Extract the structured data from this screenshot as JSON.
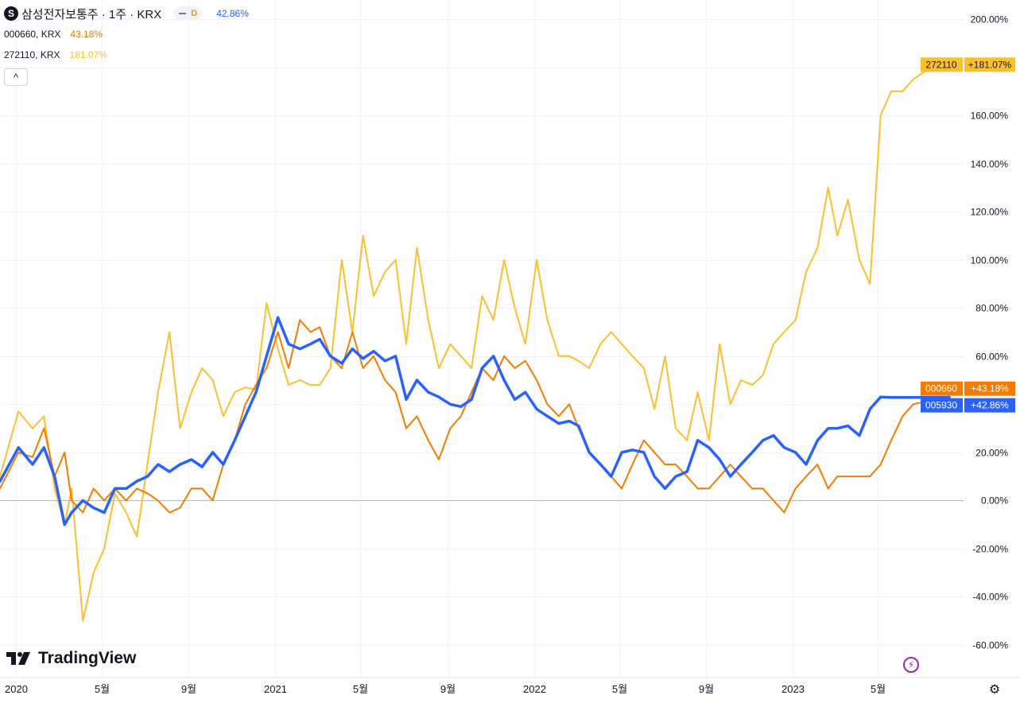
{
  "legend": {
    "main_icon_letter": "S",
    "main_title": "삼성전자보통주 · 1주 · KRX",
    "interval_label": "D",
    "main_pct": "42.86%",
    "series2_symbol": "000660, KRX",
    "series2_pct": "43.18%",
    "series3_symbol": "272110, KRX",
    "series3_pct": "181.07%",
    "collapse_icon": "^"
  },
  "logo_text": "TradingView",
  "flash_icon": "⚡",
  "settings_icon": "⚙",
  "chart_data": {
    "type": "line",
    "y_unit": "%",
    "ylim": [
      -65,
      205
    ],
    "y_ticks": [
      200,
      180,
      160,
      140,
      120,
      100,
      80,
      60,
      40,
      20,
      0,
      -20,
      -40,
      -60
    ],
    "y_tick_labels": [
      "200.00%",
      "180.00%",
      "160.00%",
      "140.00%",
      "120.00%",
      "100.00%",
      "80.00%",
      "60.00%",
      "40.00%",
      "20.00%",
      "0.00%",
      "-20.00%",
      "-40.00%",
      "-60.00%"
    ],
    "x_ticks": [
      {
        "label": "2020",
        "date": "2020-01-01"
      },
      {
        "label": "5월",
        "date": "2020-05-01"
      },
      {
        "label": "9월",
        "date": "2020-09-01"
      },
      {
        "label": "2021",
        "date": "2021-01-01"
      },
      {
        "label": "5월",
        "date": "2021-05-01"
      },
      {
        "label": "9월",
        "date": "2021-09-01"
      },
      {
        "label": "2022",
        "date": "2022-01-01"
      },
      {
        "label": "5월",
        "date": "2022-05-01"
      },
      {
        "label": "9월",
        "date": "2022-09-01"
      },
      {
        "label": "2023",
        "date": "2023-01-01"
      },
      {
        "label": "5월",
        "date": "2023-05-01"
      }
    ],
    "x_start": "2019-12-10",
    "x_end": "2023-08-30",
    "colors": {
      "005930": "#2962ff",
      "000660": "#f57c00",
      "272110": "#fbc02d"
    },
    "series": [
      {
        "name": "272110",
        "color": "#fbc02d",
        "last_label": "+181.07%",
        "x": [
          "2019-12-10",
          "2020-01-05",
          "2020-01-25",
          "2020-02-10",
          "2020-02-25",
          "2020-03-10",
          "2020-03-20",
          "2020-04-05",
          "2020-04-20",
          "2020-05-05",
          "2020-05-20",
          "2020-06-05",
          "2020-06-20",
          "2020-07-05",
          "2020-07-20",
          "2020-08-05",
          "2020-08-20",
          "2020-09-05",
          "2020-09-20",
          "2020-10-05",
          "2020-10-20",
          "2020-11-05",
          "2020-11-20",
          "2020-12-05",
          "2020-12-20",
          "2021-01-05",
          "2021-01-20",
          "2021-02-05",
          "2021-02-20",
          "2021-03-05",
          "2021-03-20",
          "2021-04-05",
          "2021-04-20",
          "2021-05-05",
          "2021-05-20",
          "2021-06-05",
          "2021-06-20",
          "2021-07-05",
          "2021-07-20",
          "2021-08-05",
          "2021-08-20",
          "2021-09-05",
          "2021-09-20",
          "2021-10-05",
          "2021-10-20",
          "2021-11-05",
          "2021-11-20",
          "2021-12-05",
          "2021-12-20",
          "2022-01-05",
          "2022-01-20",
          "2022-02-05",
          "2022-02-20",
          "2022-03-05",
          "2022-03-20",
          "2022-04-05",
          "2022-04-20",
          "2022-05-05",
          "2022-05-20",
          "2022-06-05",
          "2022-06-20",
          "2022-07-05",
          "2022-07-20",
          "2022-08-05",
          "2022-08-20",
          "2022-09-05",
          "2022-09-20",
          "2022-10-05",
          "2022-10-20",
          "2022-11-05",
          "2022-11-20",
          "2022-12-05",
          "2022-12-20",
          "2023-01-05",
          "2023-01-20",
          "2023-02-05",
          "2023-02-20",
          "2023-03-05",
          "2023-03-20",
          "2023-04-05",
          "2023-04-20",
          "2023-05-05",
          "2023-05-20",
          "2023-06-05",
          "2023-06-20",
          "2023-07-05",
          "2023-07-20",
          "2023-08-01",
          "2023-08-10"
        ],
        "values": [
          10,
          37,
          30,
          35,
          5,
          -10,
          5,
          -50,
          -30,
          -20,
          3,
          -5,
          -15,
          15,
          45,
          70,
          30,
          45,
          55,
          50,
          35,
          45,
          47,
          46,
          82,
          63,
          48,
          50,
          48,
          48,
          55,
          100,
          70,
          110,
          85,
          95,
          100,
          65,
          105,
          75,
          55,
          65,
          60,
          55,
          85,
          75,
          100,
          80,
          65,
          100,
          75,
          60,
          60,
          58,
          55,
          65,
          70,
          65,
          60,
          55,
          38,
          60,
          30,
          25,
          45,
          25,
          65,
          40,
          50,
          48,
          52,
          65,
          70,
          75,
          95,
          105,
          130,
          110,
          125,
          100,
          90,
          160,
          170,
          170,
          175,
          178,
          180,
          181,
          181.07
        ]
      },
      {
        "name": "000660",
        "color": "#f57c00",
        "last_label": "+43.18%",
        "x": [
          "2019-12-10",
          "2020-01-05",
          "2020-01-25",
          "2020-02-10",
          "2020-02-25",
          "2020-03-10",
          "2020-03-20",
          "2020-04-05",
          "2020-04-20",
          "2020-05-05",
          "2020-05-20",
          "2020-06-05",
          "2020-06-20",
          "2020-07-05",
          "2020-07-20",
          "2020-08-05",
          "2020-08-20",
          "2020-09-05",
          "2020-09-20",
          "2020-10-05",
          "2020-10-20",
          "2020-11-05",
          "2020-11-20",
          "2020-12-05",
          "2020-12-20",
          "2021-01-05",
          "2021-01-20",
          "2021-02-05",
          "2021-02-20",
          "2021-03-05",
          "2021-03-20",
          "2021-04-05",
          "2021-04-20",
          "2021-05-05",
          "2021-05-20",
          "2021-06-05",
          "2021-06-20",
          "2021-07-05",
          "2021-07-20",
          "2021-08-05",
          "2021-08-20",
          "2021-09-05",
          "2021-09-20",
          "2021-10-05",
          "2021-10-20",
          "2021-11-05",
          "2021-11-20",
          "2021-12-05",
          "2021-12-20",
          "2022-01-05",
          "2022-01-20",
          "2022-02-05",
          "2022-02-20",
          "2022-03-05",
          "2022-03-20",
          "2022-04-05",
          "2022-04-20",
          "2022-05-05",
          "2022-05-20",
          "2022-06-05",
          "2022-06-20",
          "2022-07-05",
          "2022-07-20",
          "2022-08-05",
          "2022-08-20",
          "2022-09-05",
          "2022-09-20",
          "2022-10-05",
          "2022-10-20",
          "2022-11-05",
          "2022-11-20",
          "2022-12-05",
          "2022-12-20",
          "2023-01-05",
          "2023-01-20",
          "2023-02-05",
          "2023-02-20",
          "2023-03-05",
          "2023-03-20",
          "2023-04-05",
          "2023-04-20",
          "2023-05-05",
          "2023-05-20",
          "2023-06-05",
          "2023-06-20",
          "2023-07-05",
          "2023-07-20",
          "2023-08-01",
          "2023-08-10"
        ],
        "values": [
          5,
          20,
          18,
          30,
          10,
          20,
          0,
          -5,
          5,
          0,
          5,
          0,
          5,
          3,
          0,
          -5,
          -3,
          5,
          5,
          0,
          15,
          25,
          40,
          48,
          55,
          70,
          55,
          75,
          70,
          72,
          60,
          55,
          70,
          55,
          60,
          50,
          45,
          30,
          35,
          25,
          17,
          30,
          35,
          45,
          55,
          50,
          60,
          55,
          58,
          50,
          40,
          35,
          40,
          30,
          20,
          15,
          10,
          5,
          15,
          25,
          20,
          15,
          15,
          10,
          5,
          5,
          10,
          15,
          10,
          5,
          5,
          0,
          -5,
          5,
          10,
          15,
          5,
          10,
          10,
          10,
          10,
          15,
          25,
          35,
          40,
          41,
          42,
          43,
          43.18
        ]
      },
      {
        "name": "005930",
        "color": "#2962ff",
        "last_label": "+42.86%",
        "x": [
          "2019-12-10",
          "2020-01-05",
          "2020-01-25",
          "2020-02-10",
          "2020-02-25",
          "2020-03-10",
          "2020-03-20",
          "2020-04-05",
          "2020-04-20",
          "2020-05-05",
          "2020-05-20",
          "2020-06-05",
          "2020-06-20",
          "2020-07-05",
          "2020-07-20",
          "2020-08-05",
          "2020-08-20",
          "2020-09-05",
          "2020-09-20",
          "2020-10-05",
          "2020-10-20",
          "2020-11-05",
          "2020-11-20",
          "2020-12-05",
          "2020-12-20",
          "2021-01-05",
          "2021-01-20",
          "2021-02-05",
          "2021-02-20",
          "2021-03-05",
          "2021-03-20",
          "2021-04-05",
          "2021-04-20",
          "2021-05-05",
          "2021-05-20",
          "2021-06-05",
          "2021-06-20",
          "2021-07-05",
          "2021-07-20",
          "2021-08-05",
          "2021-08-20",
          "2021-09-05",
          "2021-09-20",
          "2021-10-05",
          "2021-10-20",
          "2021-11-05",
          "2021-11-20",
          "2021-12-05",
          "2021-12-20",
          "2022-01-05",
          "2022-01-20",
          "2022-02-05",
          "2022-02-20",
          "2022-03-05",
          "2022-03-20",
          "2022-04-05",
          "2022-04-20",
          "2022-05-05",
          "2022-05-20",
          "2022-06-05",
          "2022-06-20",
          "2022-07-05",
          "2022-07-20",
          "2022-08-05",
          "2022-08-20",
          "2022-09-05",
          "2022-09-20",
          "2022-10-05",
          "2022-10-20",
          "2022-11-05",
          "2022-11-20",
          "2022-12-05",
          "2022-12-20",
          "2023-01-05",
          "2023-01-20",
          "2023-02-05",
          "2023-02-20",
          "2023-03-05",
          "2023-03-20",
          "2023-04-05",
          "2023-04-20",
          "2023-05-05",
          "2023-05-20",
          "2023-06-05",
          "2023-06-20",
          "2023-07-05",
          "2023-07-20",
          "2023-08-01",
          "2023-08-10"
        ],
        "values": [
          8,
          22,
          15,
          22,
          10,
          -10,
          -5,
          0,
          -3,
          -5,
          5,
          5,
          8,
          10,
          15,
          12,
          15,
          17,
          14,
          20,
          15,
          25,
          35,
          45,
          60,
          76,
          65,
          63,
          65,
          67,
          60,
          57,
          63,
          59,
          62,
          58,
          60,
          42,
          50,
          45,
          43,
          40,
          39,
          42,
          55,
          60,
          50,
          42,
          45,
          38,
          35,
          32,
          33,
          31,
          20,
          15,
          10,
          20,
          21,
          20,
          10,
          5,
          10,
          12,
          25,
          22,
          17,
          10,
          15,
          20,
          25,
          27,
          22,
          20,
          15,
          25,
          30,
          30,
          31,
          27,
          38,
          43,
          42.86,
          42.86,
          42.86,
          42.86,
          42.86,
          42.86,
          42.86
        ]
      }
    ]
  }
}
